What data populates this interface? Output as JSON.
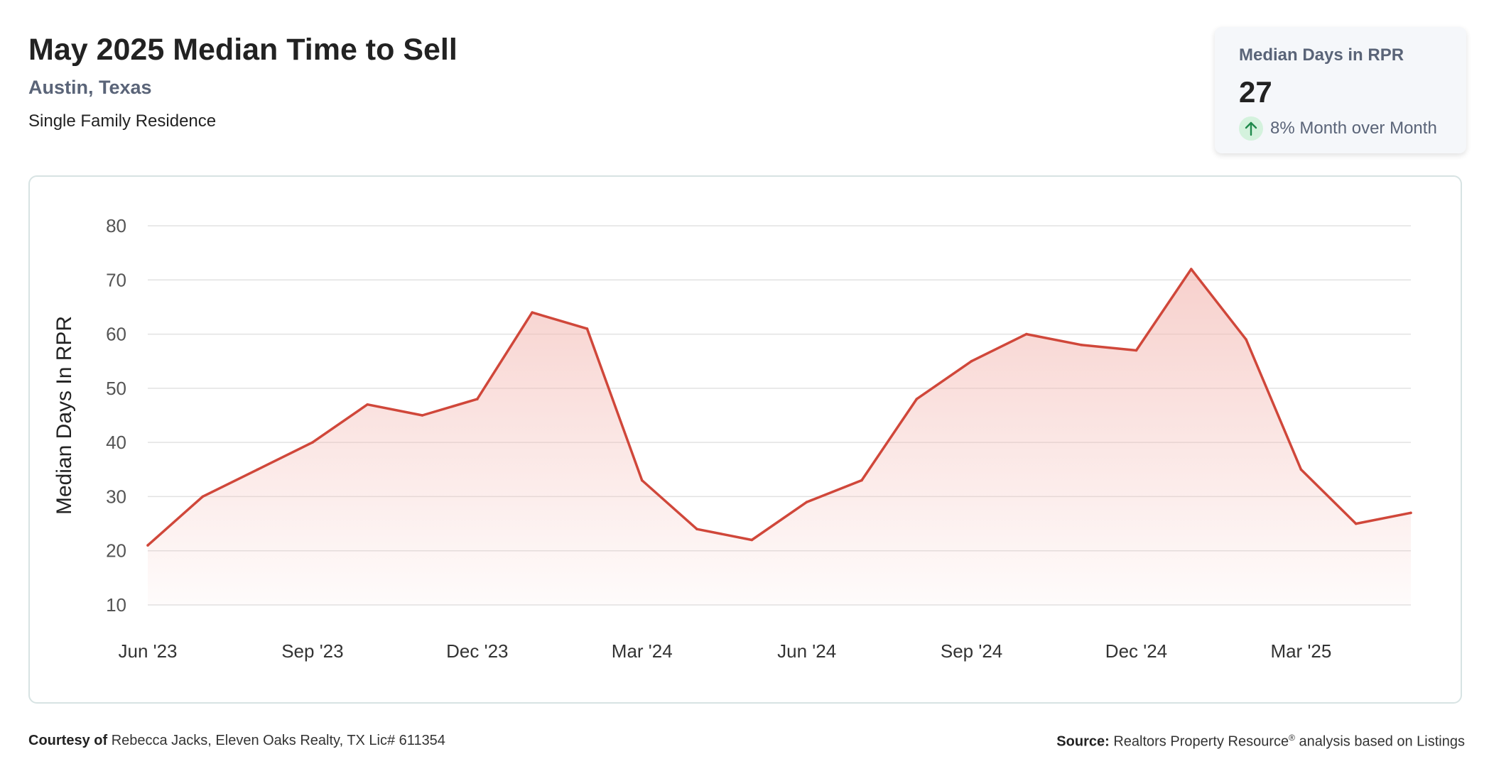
{
  "header": {
    "title": "May 2025 Median Time to Sell",
    "location": "Austin, Texas",
    "property_type": "Single Family Residence"
  },
  "stat_card": {
    "label": "Median Days in RPR",
    "value": "27",
    "change": "8% Month over Month",
    "icon": "arrow-up-icon",
    "icon_color": "#1f8a4c"
  },
  "footer": {
    "courtesy_label": "Courtesy of",
    "courtesy_text": "Rebecca Jacks, Eleven Oaks Realty, TX Lic# 611354",
    "source_label": "Source:",
    "source_name": "Realtors Property Resource",
    "source_mark": "®",
    "source_text": "analysis based on Listings"
  },
  "colors": {
    "line": "#d0473a",
    "area": "#f3b7b1",
    "grid": "#e2e2e2"
  },
  "chart_data": {
    "type": "area",
    "ylabel": "Median Days In RPR",
    "xlabel": "",
    "ylim": [
      10,
      80
    ],
    "yticks": [
      10,
      20,
      30,
      40,
      50,
      60,
      70,
      80
    ],
    "grid": true,
    "x_tick_labels": [
      "Jun '23",
      "Sep '23",
      "Dec '23",
      "Mar '24",
      "Jun '24",
      "Sep '24",
      "Dec '24",
      "Mar '25"
    ],
    "x_tick_months": [
      "2023-06",
      "2023-09",
      "2023-12",
      "2024-03",
      "2024-06",
      "2024-09",
      "2024-12",
      "2025-03"
    ],
    "x": [
      "2023-06",
      "2023-07",
      "2023-08",
      "2023-09",
      "2023-10",
      "2023-11",
      "2023-12",
      "2024-01",
      "2024-02",
      "2024-03",
      "2024-04",
      "2024-05",
      "2024-06",
      "2024-07",
      "2024-08",
      "2024-09",
      "2024-10",
      "2024-11",
      "2024-12",
      "2025-01",
      "2025-02",
      "2025-03",
      "2025-04",
      "2025-05"
    ],
    "values": [
      21,
      30,
      35,
      40,
      47,
      45,
      48,
      64,
      61,
      33,
      24,
      22,
      29,
      33,
      48,
      55,
      60,
      58,
      57,
      72,
      59,
      35,
      25,
      27
    ]
  }
}
